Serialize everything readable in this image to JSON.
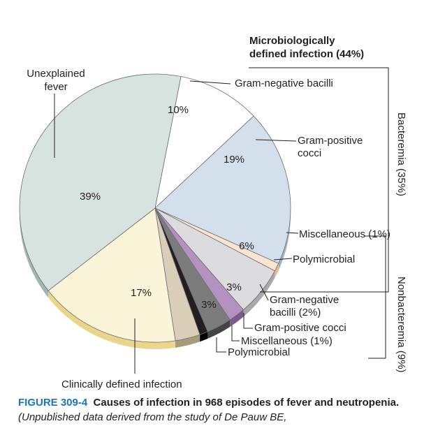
{
  "chart_data": {
    "type": "pie",
    "slices": [
      {
        "label": "Gram-negative bacilli",
        "value": 10,
        "value_label": "10%",
        "color": "#ffffff",
        "edge": "#d8d8d8"
      },
      {
        "label": "Gram-positive cocci",
        "value": 19,
        "value_label": "19%",
        "color": "#d3e0ec",
        "edge": "#9db4c8"
      },
      {
        "label": "Miscellaneous (1%)",
        "value": 1,
        "value_label": "",
        "color": "#fbe4d2",
        "edge": "#e8b898"
      },
      {
        "label": "Polymicrobial",
        "value": 6,
        "value_label": "6%",
        "color": "#dcdcde",
        "edge": "#a9a9ad"
      },
      {
        "label": "Gram-negative bacilli (2%)",
        "value": 2,
        "value_label": "",
        "color": "#b392c0",
        "edge": "#7d5a8c"
      },
      {
        "label": "Gram-positive cocci",
        "value": 3,
        "value_label": "3%",
        "color": "#7c7c7c",
        "edge": "#444444"
      },
      {
        "label": "Miscellaneous (1%)",
        "value": 1,
        "value_label": "",
        "color": "#231f20",
        "edge": "#000000"
      },
      {
        "label": "Polymicrobial",
        "value": 3,
        "value_label": "3%",
        "color": "#d9cfb8",
        "edge": "#a89b7c"
      },
      {
        "label": "Clinically defined infection",
        "value": 17,
        "value_label": "17%",
        "color": "#faf5d8",
        "edge": "#ead68a"
      },
      {
        "label": "Unexplained fever",
        "value": 39,
        "value_label": "39%",
        "color": "#d7e3de",
        "edge": "#9fb8af"
      }
    ],
    "labels": {
      "unexplained": [
        "Unexplained",
        "fever"
      ],
      "gram_neg": "Gram-negative bacilli",
      "gram_pos": [
        "Gram-positive",
        "cocci"
      ],
      "misc": "Miscellaneous (1%)",
      "poly": "Polymicrobial",
      "nb_gram_neg": [
        "Gram-negative",
        "bacilli (2%)"
      ],
      "nb_gram_pos": "Gram-positive cocci",
      "nb_misc": "Miscellaneous (1%)",
      "nb_poly": "Polymicrobial",
      "clinical": "Clinically defined infection"
    },
    "group_title": [
      "Microbiologically",
      "defined infection (44%)"
    ],
    "bracket_bacteremia": "Bacteremia (35%)",
    "bracket_nonbacteremia": "Nonbacteremia (9%)"
  },
  "caption": {
    "figure": "FIGURE 309-4",
    "title": "Causes of infection in 968 episodes of fever and neutropenia.",
    "note": "(Unpublished data derived from the study of De Pauw BE,"
  }
}
